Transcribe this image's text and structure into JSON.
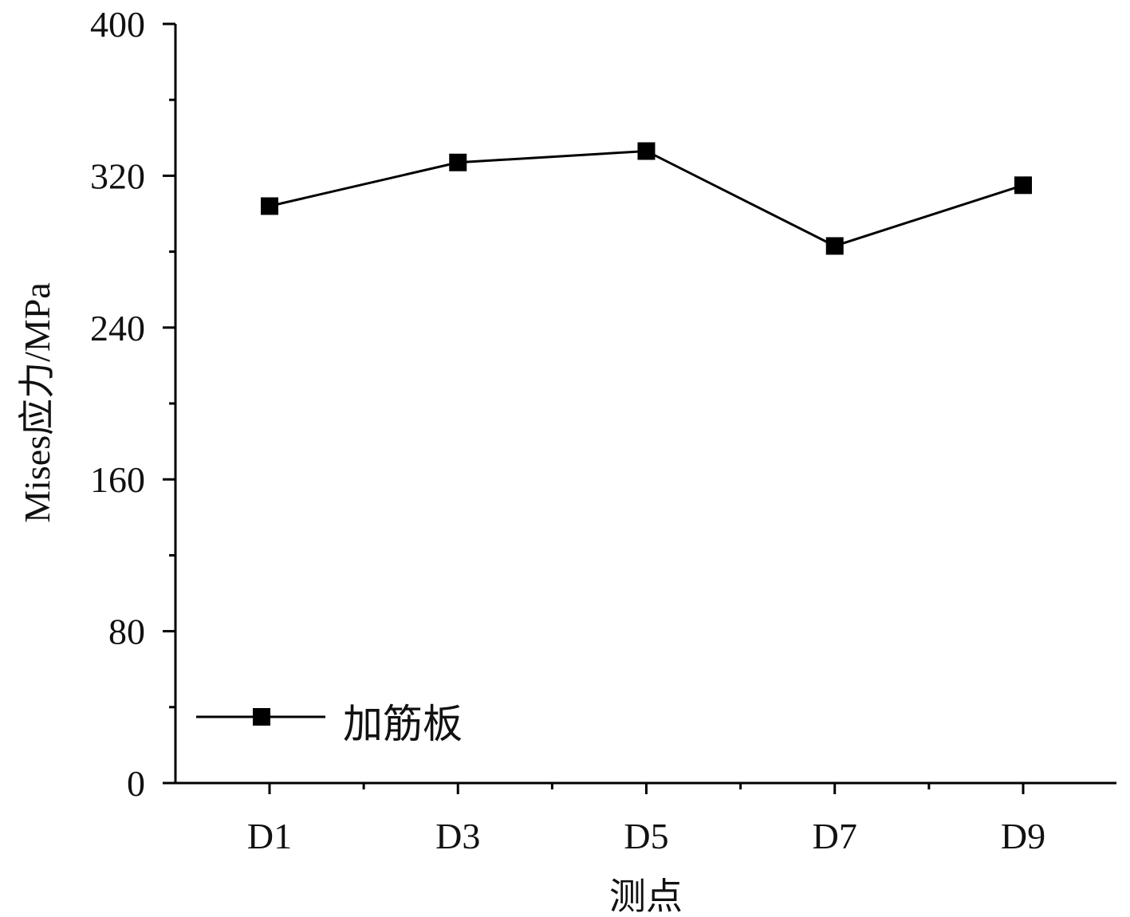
{
  "chart_data": {
    "type": "line",
    "categories": [
      "D1",
      "D3",
      "D5",
      "D7",
      "D9"
    ],
    "series": [
      {
        "name": "加筋板",
        "values": [
          304,
          327,
          333,
          283,
          315
        ],
        "color": "#000000",
        "marker": "square"
      }
    ],
    "xlabel": "测点",
    "ylabel": "Mises应力/MPa",
    "ylim": [
      0,
      400
    ],
    "yticks": [
      0,
      80,
      160,
      240,
      320,
      400
    ],
    "grid": false,
    "legend_position": "bottom-left"
  }
}
